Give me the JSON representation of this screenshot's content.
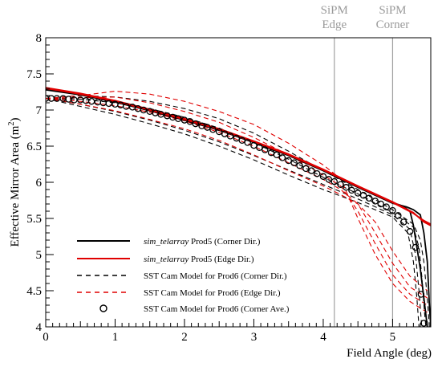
{
  "chart_data": {
    "type": "line",
    "xlabel": "Field Angle (deg)",
    "ylabel": "Effective Mirror Area (m²)",
    "ylabel_base": "Effective Mirror Area (m",
    "ylabel_sup": "2",
    "ylabel_close": ")",
    "xlim": [
      0,
      5.55
    ],
    "ylim": [
      4,
      8
    ],
    "x_ticks": [
      "0",
      "1",
      "2",
      "3",
      "4",
      "5"
    ],
    "y_ticks": [
      "4",
      "4.5",
      "5",
      "5.5",
      "6",
      "6.5",
      "7",
      "7.5",
      "8"
    ],
    "vlines": [
      {
        "x": 4.16,
        "label_line1": "SiPM",
        "label_line2": "Edge",
        "color": "#a0a0a0"
      },
      {
        "x": 5.0,
        "label_line1": "SiPM",
        "label_line2": "Corner",
        "color": "#a0a0a0"
      }
    ],
    "legend": {
      "placement": "bottom-left",
      "entries": [
        {
          "italic": "sim_telarray",
          "text": " Prod5 (Corner Dir.)",
          "color": "#000000",
          "style": "solid"
        },
        {
          "italic": "sim_telarray",
          "text": " Prod5 (Edge Dir.)",
          "color": "#e00000",
          "style": "solid"
        },
        {
          "italic": "",
          "text": "SST Cam Model for Prod6 (Corner Dir.)",
          "color": "#000000",
          "style": "dashed"
        },
        {
          "italic": "",
          "text": "SST Cam Model for Prod6 (Edge Dir.)",
          "color": "#e00000",
          "style": "dashed"
        },
        {
          "italic": "",
          "text": "SST Cam Model for Prod6 (Corner Ave.)",
          "color": "#000000",
          "style": "marker"
        }
      ]
    },
    "series": [
      {
        "name": "sim_telarray Prod5 (Corner Dir.)",
        "color": "#000000",
        "style": "solid",
        "lines": [
          [
            [
              0,
              7.29
            ],
            [
              0.5,
              7.22
            ],
            [
              1,
              7.12
            ],
            [
              1.5,
              7.0
            ],
            [
              2,
              6.87
            ],
            [
              2.5,
              6.73
            ],
            [
              3,
              6.56
            ],
            [
              3.5,
              6.38
            ],
            [
              4,
              6.17
            ],
            [
              4.5,
              5.94
            ],
            [
              5,
              5.72
            ],
            [
              5.15,
              5.67
            ],
            [
              5.25,
              5.6
            ],
            [
              5.3,
              5.4
            ],
            [
              5.35,
              5.1
            ],
            [
              5.4,
              4.8
            ],
            [
              5.45,
              4.4
            ],
            [
              5.5,
              4.0
            ]
          ],
          [
            [
              0,
              7.28
            ],
            [
              0.5,
              7.21
            ],
            [
              1,
              7.11
            ],
            [
              1.5,
              6.99
            ],
            [
              2,
              6.86
            ],
            [
              2.5,
              6.72
            ],
            [
              3,
              6.55
            ],
            [
              3.5,
              6.37
            ],
            [
              4,
              6.16
            ],
            [
              4.5,
              5.93
            ],
            [
              5,
              5.71
            ],
            [
              5.2,
              5.66
            ],
            [
              5.3,
              5.62
            ],
            [
              5.4,
              5.55
            ],
            [
              5.45,
              5.3
            ],
            [
              5.5,
              4.9
            ],
            [
              5.53,
              4.3
            ],
            [
              5.55,
              4.0
            ]
          ]
        ]
      },
      {
        "name": "sim_telarray Prod5 (Edge Dir.)",
        "color": "#e00000",
        "style": "solid",
        "lines": [
          [
            [
              0,
              7.31
            ],
            [
              0.5,
              7.23
            ],
            [
              1,
              7.13
            ],
            [
              1.5,
              7.01
            ],
            [
              2,
              6.88
            ],
            [
              2.5,
              6.74
            ],
            [
              3,
              6.57
            ],
            [
              3.5,
              6.39
            ],
            [
              4,
              6.18
            ],
            [
              4.5,
              5.95
            ],
            [
              5,
              5.73
            ],
            [
              5.3,
              5.58
            ],
            [
              5.45,
              5.45
            ],
            [
              5.55,
              5.4
            ]
          ],
          [
            [
              0,
              7.3
            ],
            [
              0.5,
              7.22
            ],
            [
              1,
              7.12
            ],
            [
              1.5,
              7.0
            ],
            [
              2,
              6.87
            ],
            [
              2.5,
              6.73
            ],
            [
              3,
              6.56
            ],
            [
              3.5,
              6.38
            ],
            [
              4,
              6.17
            ],
            [
              4.5,
              5.94
            ],
            [
              5,
              5.72
            ],
            [
              5.3,
              5.57
            ],
            [
              5.45,
              5.47
            ],
            [
              5.55,
              5.42
            ]
          ]
        ]
      },
      {
        "name": "SST Cam Model for Prod6 (Corner Dir.)",
        "color": "#000000",
        "style": "dashed",
        "lines": [
          [
            [
              0,
              7.16
            ],
            [
              0.5,
              7.2
            ],
            [
              1,
              7.18
            ],
            [
              1.5,
              7.12
            ],
            [
              2,
              7.02
            ],
            [
              2.5,
              6.88
            ],
            [
              3,
              6.68
            ],
            [
              3.5,
              6.43
            ],
            [
              4,
              6.16
            ],
            [
              4.5,
              5.9
            ],
            [
              5,
              5.62
            ],
            [
              5.3,
              5.42
            ],
            [
              5.4,
              5.2
            ],
            [
              5.45,
              4.9
            ],
            [
              5.5,
              4.4
            ],
            [
              5.53,
              4.0
            ]
          ],
          [
            [
              0,
              7.16
            ],
            [
              0.5,
              7.15
            ],
            [
              1,
              7.1
            ],
            [
              1.5,
              7.02
            ],
            [
              2,
              6.9
            ],
            [
              2.5,
              6.75
            ],
            [
              3,
              6.55
            ],
            [
              3.5,
              6.32
            ],
            [
              4,
              6.07
            ],
            [
              4.5,
              5.84
            ],
            [
              5,
              5.58
            ],
            [
              5.3,
              5.38
            ],
            [
              5.38,
              5.1
            ],
            [
              5.42,
              4.7
            ],
            [
              5.46,
              4.2
            ],
            [
              5.48,
              4.0
            ]
          ],
          [
            [
              0,
              7.16
            ],
            [
              0.5,
              7.08
            ],
            [
              1,
              6.98
            ],
            [
              1.5,
              6.86
            ],
            [
              2,
              6.72
            ],
            [
              2.5,
              6.56
            ],
            [
              3,
              6.37
            ],
            [
              3.5,
              6.17
            ],
            [
              4,
              5.97
            ],
            [
              4.5,
              5.77
            ],
            [
              5,
              5.55
            ],
            [
              5.25,
              5.35
            ],
            [
              5.33,
              5.0
            ],
            [
              5.38,
              4.5
            ],
            [
              5.42,
              4.0
            ]
          ],
          [
            [
              0,
              7.16
            ],
            [
              0.5,
              7.05
            ],
            [
              1,
              6.94
            ],
            [
              1.5,
              6.81
            ],
            [
              2,
              6.67
            ],
            [
              2.5,
              6.5
            ],
            [
              3,
              6.31
            ],
            [
              3.5,
              6.1
            ],
            [
              4,
              5.9
            ],
            [
              4.5,
              5.72
            ],
            [
              5,
              5.52
            ],
            [
              5.22,
              5.3
            ],
            [
              5.3,
              4.9
            ],
            [
              5.35,
              4.4
            ],
            [
              5.38,
              4.0
            ]
          ]
        ]
      },
      {
        "name": "SST Cam Model for Prod6 (Edge Dir.)",
        "color": "#e00000",
        "style": "dashed",
        "lines": [
          [
            [
              0,
              7.16
            ],
            [
              0.5,
              7.2
            ],
            [
              1,
              7.26
            ],
            [
              1.5,
              7.22
            ],
            [
              2,
              7.12
            ],
            [
              2.5,
              6.98
            ],
            [
              3,
              6.8
            ],
            [
              3.5,
              6.54
            ],
            [
              4,
              6.24
            ],
            [
              4.25,
              6.05
            ],
            [
              4.5,
              5.5
            ],
            [
              4.75,
              5.0
            ],
            [
              5,
              4.6
            ],
            [
              5.25,
              4.35
            ],
            [
              5.5,
              4.2
            ]
          ],
          [
            [
              0,
              7.16
            ],
            [
              0.5,
              7.17
            ],
            [
              1,
              7.18
            ],
            [
              1.5,
              7.1
            ],
            [
              2,
              6.98
            ],
            [
              2.5,
              6.83
            ],
            [
              3,
              6.62
            ],
            [
              3.5,
              6.38
            ],
            [
              4,
              6.1
            ],
            [
              4.25,
              5.95
            ],
            [
              4.5,
              5.6
            ],
            [
              4.75,
              5.15
            ],
            [
              5,
              4.72
            ],
            [
              5.25,
              4.45
            ],
            [
              5.5,
              4.3
            ]
          ],
          [
            [
              0,
              7.16
            ],
            [
              0.5,
              7.12
            ],
            [
              1,
              7.06
            ],
            [
              1.5,
              6.97
            ],
            [
              2,
              6.85
            ],
            [
              2.5,
              6.69
            ],
            [
              3,
              6.5
            ],
            [
              3.5,
              6.27
            ],
            [
              4,
              6.04
            ],
            [
              4.25,
              5.9
            ],
            [
              4.5,
              5.7
            ],
            [
              4.75,
              5.3
            ],
            [
              5,
              4.88
            ],
            [
              5.25,
              4.55
            ],
            [
              5.5,
              4.4
            ]
          ],
          [
            [
              0,
              7.16
            ],
            [
              0.5,
              7.08
            ],
            [
              1,
              6.99
            ],
            [
              1.5,
              6.87
            ],
            [
              2,
              6.74
            ],
            [
              2.5,
              6.58
            ],
            [
              3,
              6.38
            ],
            [
              3.5,
              6.16
            ],
            [
              4,
              5.95
            ],
            [
              4.25,
              5.83
            ],
            [
              4.5,
              5.7
            ],
            [
              4.75,
              5.45
            ],
            [
              5,
              5.05
            ],
            [
              5.25,
              4.7
            ],
            [
              5.5,
              4.5
            ]
          ]
        ]
      },
      {
        "name": "SST Cam Model for Prod6 (Corner Ave.)",
        "color": "#000000",
        "style": "marker",
        "x": [
          0,
          0.08,
          0.16,
          0.25,
          0.33,
          0.41,
          0.5,
          0.58,
          0.66,
          0.75,
          0.83,
          0.91,
          1,
          1.08,
          1.16,
          1.25,
          1.33,
          1.41,
          1.5,
          1.58,
          1.66,
          1.75,
          1.83,
          1.91,
          2,
          2.08,
          2.16,
          2.25,
          2.33,
          2.41,
          2.5,
          2.58,
          2.66,
          2.75,
          2.83,
          2.91,
          3,
          3.08,
          3.16,
          3.25,
          3.33,
          3.41,
          3.5,
          3.58,
          3.66,
          3.75,
          3.83,
          3.91,
          4,
          4.08,
          4.16,
          4.25,
          4.33,
          4.41,
          4.5,
          4.58,
          4.66,
          4.75,
          4.83,
          4.91,
          5,
          5.08,
          5.16,
          5.25,
          5.33,
          5.41,
          5.45
        ],
        "y": [
          7.16,
          7.16,
          7.16,
          7.16,
          7.15,
          7.14,
          7.14,
          7.13,
          7.12,
          7.11,
          7.1,
          7.09,
          7.08,
          7.07,
          7.05,
          7.04,
          7.02,
          7.0,
          6.98,
          6.96,
          6.94,
          6.92,
          6.9,
          6.88,
          6.86,
          6.84,
          6.81,
          6.78,
          6.76,
          6.73,
          6.7,
          6.67,
          6.64,
          6.61,
          6.58,
          6.55,
          6.51,
          6.48,
          6.45,
          6.41,
          6.38,
          6.34,
          6.3,
          6.27,
          6.23,
          6.19,
          6.16,
          6.12,
          6.08,
          6.04,
          6.01,
          5.97,
          5.93,
          5.89,
          5.85,
          5.82,
          5.78,
          5.74,
          5.7,
          5.66,
          5.61,
          5.54,
          5.45,
          5.32,
          5.1,
          4.45,
          4.05
        ]
      }
    ]
  }
}
